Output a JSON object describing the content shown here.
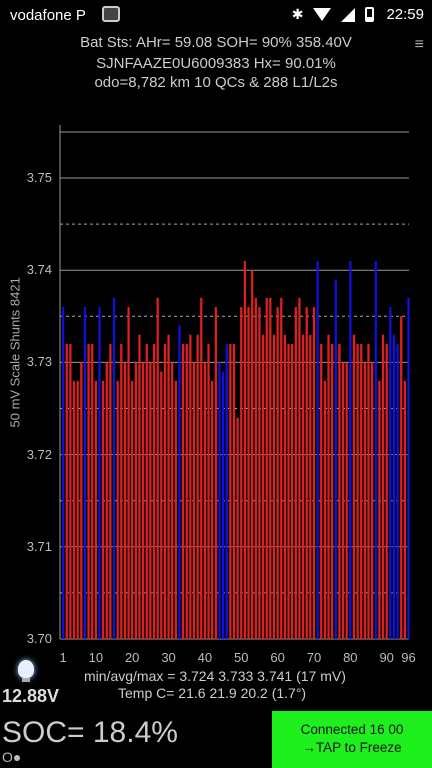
{
  "status_bar": {
    "carrier": "vodafone P",
    "time": "22:59"
  },
  "header": {
    "line1": "Bat Sts: AHr= 59.08 SOH= 90% 358.40V",
    "line2": "SJNFAAZE0U6009383    Hx= 90.01%",
    "line3": "odo=8,782 km  10 QCs  &  288 L1/L2s"
  },
  "chart_data": {
    "type": "bar",
    "ylabel": "50 mV Scale  Shunts 8421",
    "ylim": [
      3.7,
      3.75
    ],
    "yticks": [
      "3.75",
      "3.74",
      "3.73",
      "3.72",
      "3.71",
      "3.70"
    ],
    "xticks": [
      "1",
      "10",
      "20",
      "30",
      "40",
      "50",
      "60",
      "70",
      "80",
      "90",
      "96"
    ],
    "colors": {
      "normal": "#e02020",
      "shunted": "#1010e0"
    },
    "values": [
      3.736,
      3.732,
      3.732,
      3.728,
      3.728,
      3.73,
      3.736,
      3.732,
      3.732,
      3.728,
      3.736,
      3.728,
      3.73,
      3.732,
      3.737,
      3.728,
      3.732,
      3.73,
      3.736,
      3.728,
      3.73,
      3.733,
      3.73,
      3.732,
      3.73,
      3.732,
      3.737,
      3.729,
      3.732,
      3.733,
      3.73,
      3.728,
      3.734,
      3.732,
      3.732,
      3.733,
      3.73,
      3.733,
      3.737,
      3.73,
      3.732,
      3.728,
      3.736,
      3.73,
      3.729,
      3.732,
      3.732,
      3.732,
      3.724,
      3.736,
      3.741,
      3.736,
      3.74,
      3.737,
      3.736,
      3.733,
      3.737,
      3.737,
      3.733,
      3.736,
      3.737,
      3.733,
      3.732,
      3.732,
      3.736,
      3.737,
      3.733,
      3.736,
      3.733,
      3.736,
      3.741,
      3.732,
      3.728,
      3.733,
      3.732,
      3.739,
      3.732,
      3.73,
      3.73,
      3.741,
      3.733,
      3.732,
      3.732,
      3.73,
      3.732,
      3.73,
      3.741,
      3.728,
      3.733,
      3.732,
      3.736,
      3.733,
      3.732,
      3.735,
      3.728,
      3.737
    ],
    "shunted_cells": [
      1,
      7,
      11,
      15,
      33,
      44,
      45,
      46,
      71,
      76,
      80,
      87,
      91,
      92,
      93,
      96
    ]
  },
  "stats": {
    "line1": "min/avg/max = 3.724 3.733 3.741  (17 mV)",
    "line2": "Temp C= 21.6  21.9  20.2  (1.7°)"
  },
  "bottom": {
    "voltage": "12.88V",
    "soc": "SOC= 18.4%",
    "soc_sub": "O●",
    "connect_line1": "Connected 16 00",
    "connect_line2": "→TAP to Freeze"
  },
  "icons": [
    "bluetooth-icon",
    "wifi-icon",
    "signal-icon",
    "battery-icon",
    "menu-icon",
    "bulb-icon"
  ]
}
